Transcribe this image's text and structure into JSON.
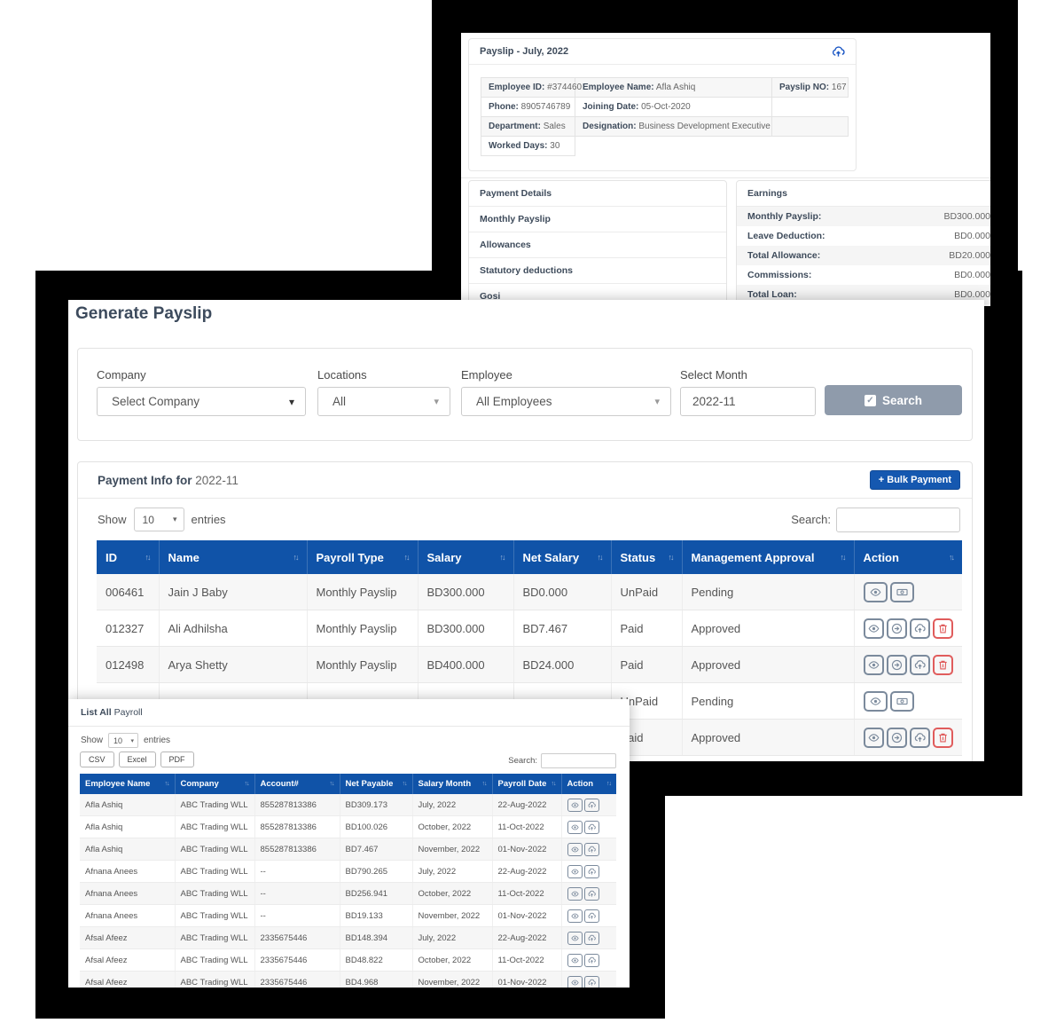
{
  "icons": {
    "sort": "↑↓",
    "caret": "▾",
    "check": "✓"
  },
  "colors": {
    "table_header_blue": "#1053a8",
    "primary_button_blue": "#1558b0",
    "paid_green": "#35d45a",
    "delete_red": "#e05c5c",
    "search_button_gray": "#8f9bab",
    "action_icon_slate": "#7b8a9c",
    "upload_icon_blue": "#1a56c4"
  },
  "payslip_window": {
    "title_bold": "Payslip",
    "title_rest": " - July, 2022",
    "info": {
      "employee_id_label": "Employee ID:",
      "employee_id_value": "#374460",
      "employee_name_label": "Employee Name:",
      "employee_name_value": "Afla Ashiq",
      "payslip_no_label": "Payslip NO:",
      "payslip_no_value": "167",
      "phone_label": "Phone:",
      "phone_value": "8905746789",
      "joining_date_label": "Joining Date:",
      "joining_date_value": "05-Oct-2020",
      "department_label": "Department:",
      "department_value": "Sales",
      "designation_label": "Designation:",
      "designation_value": "Business Development Executive",
      "worked_days_label": "Worked Days:",
      "worked_days_value": "30"
    },
    "payment_details": {
      "title": "Payment Details",
      "items": [
        "Monthly Payslip",
        "Allowances",
        "Statutory deductions",
        "Gosi"
      ]
    },
    "earnings": {
      "title": "Earnings",
      "rows": [
        {
          "label": "Monthly Payslip:",
          "value": "BD300.000"
        },
        {
          "label": "Leave Deduction:",
          "value": "BD0.000"
        },
        {
          "label": "Total Allowance:",
          "value": "BD20.000"
        },
        {
          "label": "Commissions:",
          "value": "BD0.000"
        },
        {
          "label": "Total Loan:",
          "value": "BD0.000"
        }
      ]
    }
  },
  "generate_window": {
    "title": "Generate Payslip",
    "filters": {
      "company_label": "Company",
      "company_value": "Select Company",
      "locations_label": "Locations",
      "locations_value": "All",
      "employee_label": "Employee",
      "employee_value": "All Employees",
      "month_label": "Select Month",
      "month_value": "2022-11",
      "search_button": "Search"
    },
    "payment_info": {
      "title_bold": "Payment Info for",
      "title_month": "2022-11",
      "bulk_button": "+ Bulk Payment",
      "show_label": "Show",
      "page_size": "10",
      "entries_label": "entries",
      "search_label": "Search:",
      "headers": [
        "ID",
        "Name",
        "Payroll Type",
        "Salary",
        "Net Salary",
        "Status",
        "Management Approval",
        "Action"
      ],
      "rows": [
        {
          "id": "006461",
          "name": "Jain J Baby",
          "payroll_type": "Monthly Payslip",
          "salary": "BD300.000",
          "net_salary": "BD0.000",
          "status": "UnPaid",
          "approval": "Pending"
        },
        {
          "id": "012327",
          "name": "Ali Adhilsha",
          "payroll_type": "Monthly Payslip",
          "salary": "BD300.000",
          "net_salary": "BD7.467",
          "status": "Paid",
          "approval": "Approved"
        },
        {
          "id": "012498",
          "name": "Arya Shetty",
          "payroll_type": "Monthly Payslip",
          "salary": "BD400.000",
          "net_salary": "BD24.000",
          "status": "Paid",
          "approval": "Approved"
        },
        {
          "id": "",
          "name": "",
          "payroll_type": "",
          "salary": "",
          "net_salary": "",
          "status": "UnPaid",
          "approval": "Pending"
        },
        {
          "id": "",
          "name": "",
          "payroll_type": "",
          "salary": "",
          "net_salary": "",
          "status": "Paid",
          "approval": "Approved"
        }
      ]
    }
  },
  "payroll_window": {
    "title_bold": "List All",
    "title_rest": "Payroll",
    "show_label": "Show",
    "page_size": "10",
    "entries_label": "entries",
    "export_buttons": [
      "CSV",
      "Excel",
      "PDF"
    ],
    "search_label": "Search:",
    "headers": [
      "Employee Name",
      "Company",
      "Account#",
      "Net Payable",
      "Salary Month",
      "Payroll Date",
      "Action"
    ],
    "rows": [
      {
        "employee_name": "Afla Ashiq",
        "company": "ABC Trading WLL",
        "account": "855287813386",
        "net_payable": "BD309.173",
        "salary_month": "July, 2022",
        "payroll_date": "22-Aug-2022"
      },
      {
        "employee_name": "Afla Ashiq",
        "company": "ABC Trading WLL",
        "account": "855287813386",
        "net_payable": "BD100.026",
        "salary_month": "October, 2022",
        "payroll_date": "11-Oct-2022"
      },
      {
        "employee_name": "Afla Ashiq",
        "company": "ABC Trading WLL",
        "account": "855287813386",
        "net_payable": "BD7.467",
        "salary_month": "November, 2022",
        "payroll_date": "01-Nov-2022"
      },
      {
        "employee_name": "Afnana Anees",
        "company": "ABC Trading WLL",
        "account": "--",
        "net_payable": "BD790.265",
        "salary_month": "July, 2022",
        "payroll_date": "22-Aug-2022"
      },
      {
        "employee_name": "Afnana Anees",
        "company": "ABC Trading WLL",
        "account": "--",
        "net_payable": "BD256.941",
        "salary_month": "October, 2022",
        "payroll_date": "11-Oct-2022"
      },
      {
        "employee_name": "Afnana Anees",
        "company": "ABC Trading WLL",
        "account": "--",
        "net_payable": "BD19.133",
        "salary_month": "November, 2022",
        "payroll_date": "01-Nov-2022"
      },
      {
        "employee_name": "Afsal Afeez",
        "company": "ABC Trading WLL",
        "account": "2335675446",
        "net_payable": "BD148.394",
        "salary_month": "July, 2022",
        "payroll_date": "22-Aug-2022"
      },
      {
        "employee_name": "Afsal Afeez",
        "company": "ABC Trading WLL",
        "account": "2335675446",
        "net_payable": "BD48.822",
        "salary_month": "October, 2022",
        "payroll_date": "11-Oct-2022"
      },
      {
        "employee_name": "Afsal Afeez",
        "company": "ABC Trading WLL",
        "account": "2335675446",
        "net_payable": "BD4.968",
        "salary_month": "November, 2022",
        "payroll_date": "01-Nov-2022"
      }
    ]
  }
}
